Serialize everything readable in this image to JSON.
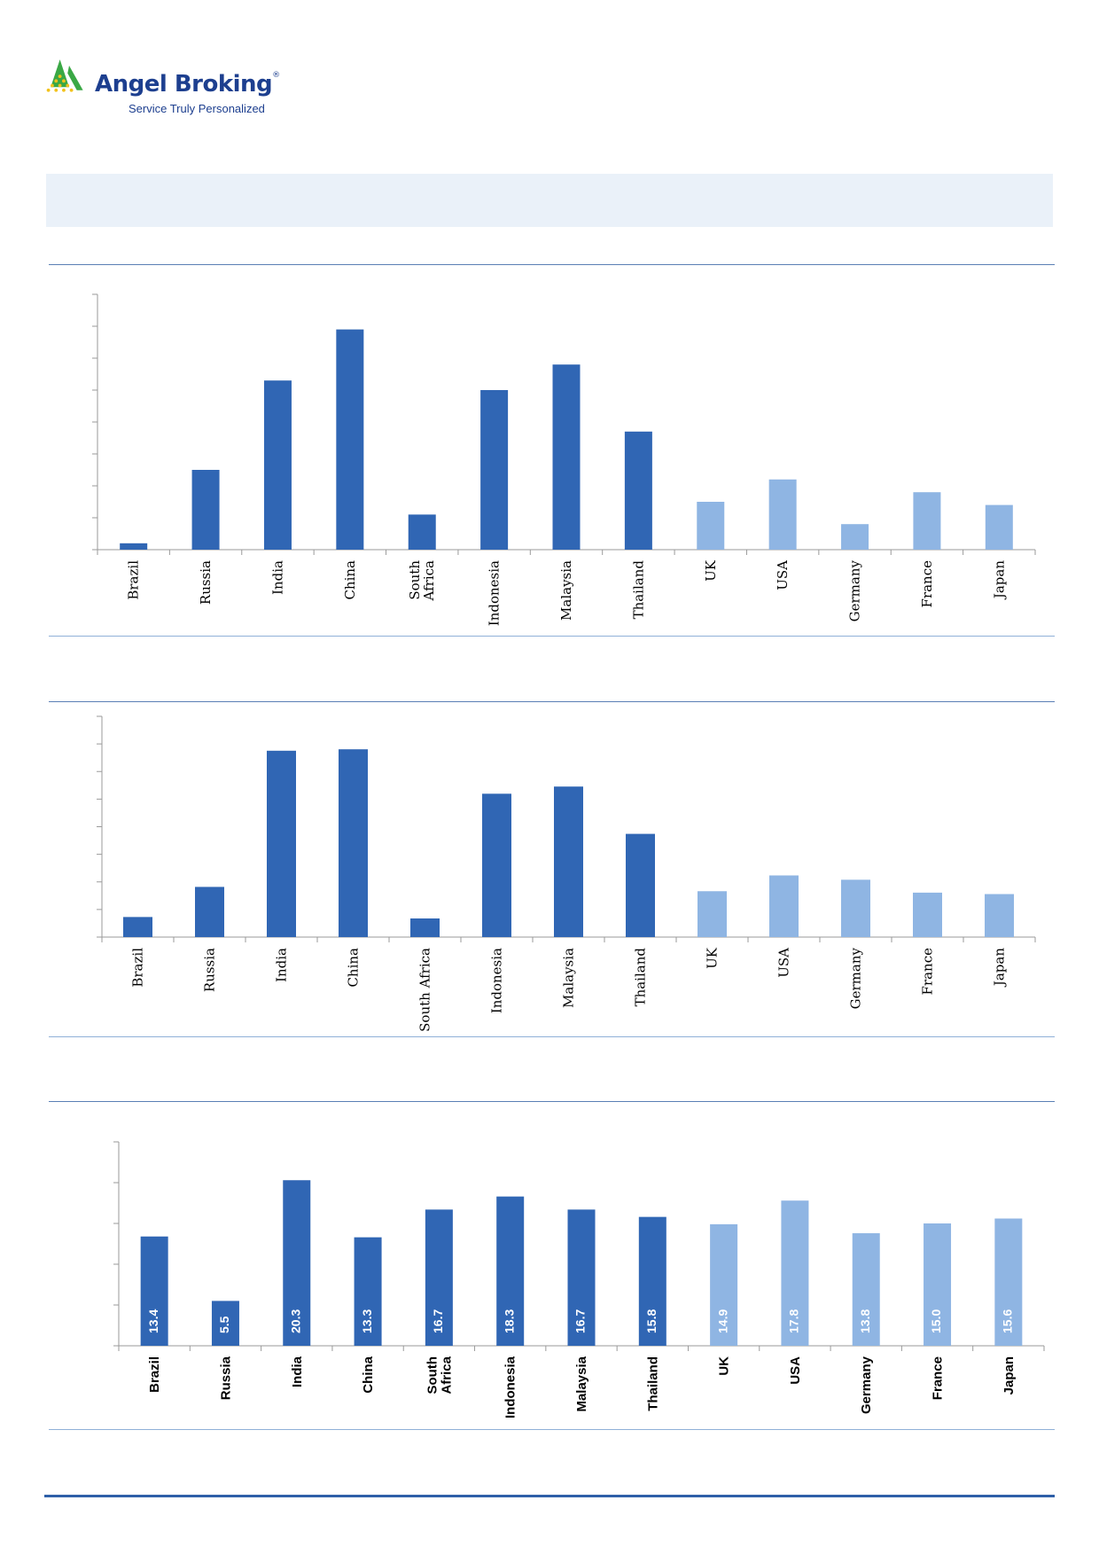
{
  "brand": {
    "name": "Angel Broking",
    "reg_mark": "®",
    "tagline": "Service Truly Personalized",
    "logo_icon": "angel-triangle-logo-icon",
    "colors": {
      "navy": "#1d3f8f",
      "green": "#3aa845",
      "yellow": "#f2c21b"
    }
  },
  "colors": {
    "em_bar": "#3066b4",
    "dm_bar": "#8fb5e3",
    "axis": "#9a9a9a",
    "band": "#eaf1f9"
  },
  "chart_data": [
    {
      "type": "bar",
      "categories": [
        "Brazil",
        "Russia",
        "India",
        "China",
        "South Africa",
        "Indonesia",
        "Malaysia",
        "Thailand",
        "UK",
        "USA",
        "Germany",
        "France",
        "Japan"
      ],
      "values": [
        2,
        25,
        53,
        69,
        11,
        50,
        58,
        37,
        15,
        22,
        8,
        18,
        14
      ],
      "ylim": [
        0,
        80
      ],
      "category_group": [
        "em",
        "em",
        "em",
        "em",
        "em",
        "em",
        "em",
        "em",
        "dm",
        "dm",
        "dm",
        "dm",
        "dm"
      ],
      "label_style": "serif"
    },
    {
      "type": "bar",
      "categories": [
        "Brazil",
        "Russia",
        "India",
        "China",
        "South Africa",
        "Indonesia",
        "Malaysia",
        "Thailand",
        "UK",
        "USA",
        "Germany",
        "France",
        "Japan"
      ],
      "values": [
        7,
        17.5,
        65,
        65.5,
        6.5,
        50,
        52.5,
        36,
        16,
        21.5,
        20,
        15.5,
        15
      ],
      "ylim": [
        0,
        77
      ],
      "category_group": [
        "em",
        "em",
        "em",
        "em",
        "em",
        "em",
        "em",
        "em",
        "dm",
        "dm",
        "dm",
        "dm",
        "dm"
      ],
      "label_style": "serif"
    },
    {
      "type": "bar",
      "categories": [
        "Brazil",
        "Russia",
        "India",
        "China",
        "South Africa",
        "Indonesia",
        "Malaysia",
        "Thailand",
        "UK",
        "USA",
        "Germany",
        "France",
        "Japan"
      ],
      "values": [
        13.4,
        5.5,
        20.3,
        13.3,
        16.7,
        18.3,
        16.7,
        15.8,
        14.9,
        17.8,
        13.8,
        15.0,
        15.6
      ],
      "data_labels": [
        "13.4",
        "5.5",
        "20.3",
        "13.3",
        "16.7",
        "18.3",
        "16.7",
        "15.8",
        "14.9",
        "17.8",
        "13.8",
        "15.0",
        "15.6"
      ],
      "ylim": [
        0,
        25
      ],
      "category_group": [
        "em",
        "em",
        "em",
        "em",
        "em",
        "em",
        "em",
        "em",
        "dm",
        "dm",
        "dm",
        "dm",
        "dm"
      ],
      "label_style": "sans-bold"
    }
  ]
}
